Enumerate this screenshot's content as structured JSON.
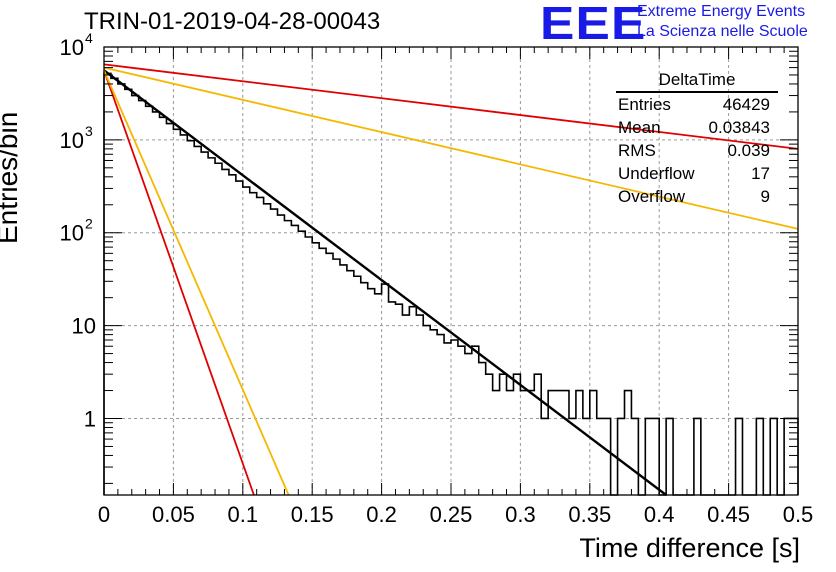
{
  "title": "TRIN-01-2019-04-28-00043",
  "logo": {
    "letters": "EEE",
    "line1": "Extreme Energy Events",
    "line2": "La Scienza nelle Scuole",
    "color": "#1a1ae6"
  },
  "stats_box": {
    "name": "DeltaTime",
    "rows": [
      {
        "label": "Entries",
        "value": "46429"
      },
      {
        "label": "Mean",
        "value": "0.03843"
      },
      {
        "label": "RMS",
        "value": "0.039"
      },
      {
        "label": "Underflow",
        "value": "17"
      },
      {
        "label": "Overflow",
        "value": "9"
      }
    ]
  },
  "chart_data": {
    "type": "histogram",
    "xlabel": "Time difference [s]",
    "ylabel": "Entries/bin",
    "xlim": [
      0,
      0.5
    ],
    "ylim": [
      0.15,
      10000
    ],
    "y_scale": "log",
    "grid": true,
    "x_ticks": [
      {
        "v": 0,
        "t": "0"
      },
      {
        "v": 0.05,
        "t": "0.05"
      },
      {
        "v": 0.1,
        "t": "0.1"
      },
      {
        "v": 0.15,
        "t": "0.15"
      },
      {
        "v": 0.2,
        "t": "0.2"
      },
      {
        "v": 0.25,
        "t": "0.25"
      },
      {
        "v": 0.3,
        "t": "0.3"
      },
      {
        "v": 0.35,
        "t": "0.35"
      },
      {
        "v": 0.4,
        "t": "0.4"
      },
      {
        "v": 0.45,
        "t": "0.45"
      },
      {
        "v": 0.5,
        "t": "0.5"
      }
    ],
    "y_ticks": [
      {
        "v": 1,
        "t": "1"
      },
      {
        "v": 10,
        "t": "10"
      },
      {
        "v": 100,
        "t": "10",
        "sup": "2"
      },
      {
        "v": 1000,
        "t": "10",
        "sup": "3"
      },
      {
        "v": 10000,
        "t": "10",
        "sup": "4"
      }
    ],
    "bin_width": 0.005,
    "histogram_counts": [
      5200,
      4600,
      4000,
      3500,
      3000,
      2650,
      2300,
      2000,
      1750,
      1500,
      1300,
      1130,
      980,
      850,
      740,
      640,
      560,
      480,
      420,
      360,
      310,
      270,
      240,
      205,
      180,
      155,
      135,
      120,
      104,
      90,
      78,
      68,
      60,
      52,
      45,
      39,
      34,
      29,
      25,
      22,
      28,
      18,
      17,
      13,
      16,
      13,
      10,
      9,
      8,
      6.5,
      7,
      6,
      5,
      6,
      4,
      3,
      2,
      3,
      2,
      3,
      2,
      2,
      3,
      1,
      2,
      2,
      2,
      1,
      2,
      1,
      2,
      1,
      1,
      0,
      1,
      2,
      1,
      0,
      1,
      1,
      0,
      1,
      0,
      0,
      0,
      1,
      0,
      0,
      0,
      0,
      0,
      1,
      0,
      0,
      1,
      0,
      1,
      0,
      1,
      1
    ],
    "fit_lines": [
      {
        "name": "fit",
        "color": "#000000",
        "x": [
          0,
          0.405
        ],
        "y": [
          5600,
          0.15
        ],
        "width": 2.4
      },
      {
        "name": "red-slow",
        "color": "#e00000",
        "x": [
          0,
          0.5
        ],
        "y": [
          6500,
          800
        ],
        "width": 1.8
      },
      {
        "name": "orange-slow",
        "color": "#f5b800",
        "x": [
          0,
          0.5
        ],
        "y": [
          6000,
          110
        ],
        "width": 1.8
      },
      {
        "name": "red-fast",
        "color": "#e00000",
        "x": [
          0,
          0.108
        ],
        "y": [
          5600,
          0.15
        ],
        "width": 1.8
      },
      {
        "name": "orange-fast",
        "color": "#f5b800",
        "x": [
          0,
          0.133
        ],
        "y": [
          5600,
          0.15
        ],
        "width": 1.8
      }
    ]
  }
}
